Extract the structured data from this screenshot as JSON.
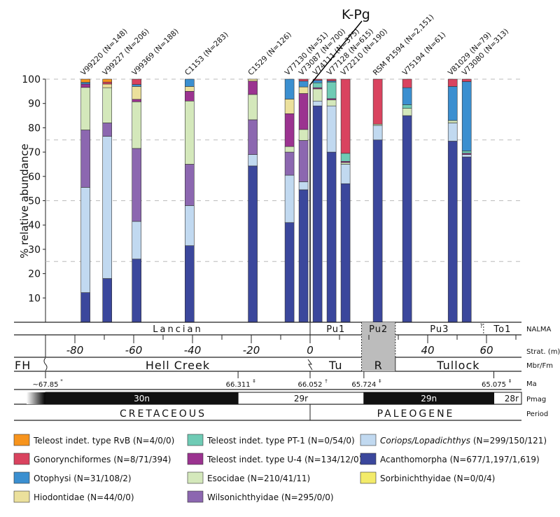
{
  "chart_data": {
    "type": "bar",
    "stacked": true,
    "ylabel": "% relative abundance",
    "ylim": [
      0,
      100
    ],
    "yticks": [
      10,
      20,
      30,
      40,
      50,
      60,
      70,
      80,
      90,
      100
    ],
    "gridlines": [
      25,
      50,
      75,
      100
    ],
    "grid": "dashed horizontal",
    "annotation": "K-Pg",
    "categories_order_bottom_to_top": [
      "Acanthomorpha",
      "Coriops/Lopadichthys",
      "Wilsonichthyidae",
      "Esocidae",
      "Teleost indet. type U-4",
      "Hiodontidae",
      "Sorbinichthyidae",
      "Teleost indet. type PT-1",
      "Otophysi",
      "Gonorynchiformes",
      "Teleost indet. type RvB"
    ],
    "series_colors": {
      "Teleost indet. type RvB": "#f7941d",
      "Gonorynchiformes": "#d9435f",
      "Otophysi": "#3b8fd0",
      "Hiodontidae": "#ebe09c",
      "Teleost indet. type PT-1": "#6fcbb5",
      "Teleost indet. type U-4": "#9b3390",
      "Esocidae": "#d4e8bb",
      "Wilsonichthyidae": "#8c67b0",
      "Coriops/Lopadichthys": "#c1d9f0",
      "Acanthomorpha": "#3b479c",
      "Sorbinichthyidae": "#f3eb6a"
    },
    "bars": [
      {
        "label": "V99220 (N=148)",
        "strat_m": -76.4,
        "values": {
          "Acanthomorpha": 12.2,
          "Coriops/Lopadichthys": 43.3,
          "Wilsonichthyidae": 23.6,
          "Esocidae": 17.5,
          "Teleost indet. type U-4": 1.4,
          "Otophysi": 0.7,
          "Teleost indet. type RvB": 1.3
        }
      },
      {
        "label": "V99227 (N=206)",
        "strat_m": -69,
        "values": {
          "Acanthomorpha": 18,
          "Coriops/Lopadichthys": 58.5,
          "Wilsonichthyidae": 5.5,
          "Esocidae": 14.5,
          "Hiodontidae": 1.5,
          "Gonorynchiformes": 0.8,
          "Teleost indet. type RvB": 1.2
        }
      },
      {
        "label": "V99369 (N=188)",
        "strat_m": -59,
        "values": {
          "Acanthomorpha": 26,
          "Coriops/Lopadichthys": 15.5,
          "Wilsonichthyidae": 30,
          "Esocidae": 19.2,
          "Teleost indet. type U-4": 1,
          "Hiodontidae": 5.3,
          "Otophysi": 0.8,
          "Gonorynchiformes": 2.2
        }
      },
      {
        "label": "C1153 (N=283)",
        "strat_m": -41,
        "values": {
          "Acanthomorpha": 31.5,
          "Coriops/Lopadichthys": 16.5,
          "Wilsonichthyidae": 17,
          "Esocidae": 26,
          "Teleost indet. type U-4": 4,
          "Hiodontidae": 2,
          "Otophysi": 3
        }
      },
      {
        "label": "C1529 (N=126)",
        "strat_m": -19.5,
        "values": {
          "Acanthomorpha": 64.3,
          "Coriops/Lopadichthys": 4.7,
          "Wilsonichthyidae": 14.3,
          "Esocidae": 10.4,
          "Teleost indet. type U-4": 5.5,
          "Hiodontidae": 0.8
        }
      },
      {
        "label": "V77130 (N=51)",
        "strat_m": -7,
        "values": {
          "Acanthomorpha": 41,
          "Coriops/Lopadichthys": 19.5,
          "Wilsonichthyidae": 9.5,
          "Esocidae": 2.3,
          "Teleost indet. type U-4": 13.5,
          "Hiodontidae": 6,
          "Otophysi": 8.2
        }
      },
      {
        "label": "V73087 (N=700)",
        "strat_m": -4,
        "values": {
          "Acanthomorpha": 54.5,
          "Coriops/Lopadichthys": 3.3,
          "Wilsonichthyidae": 17,
          "Esocidae": 4.5,
          "Teleost indet. type U-4": 14.8,
          "Hiodontidae": 2.7,
          "Otophysi": 2.4,
          "Gonorynchiformes": 0.8
        }
      },
      {
        "label": "V74111 (N=375)",
        "strat_m": 2,
        "values": {
          "Acanthomorpha": 89,
          "Coriops/Lopadichthys": 2,
          "Esocidae": 5,
          "Teleost indet. type U-4": 0.5,
          "Teleost indet. type PT-1": 2,
          "Otophysi": 1,
          "Gonorynchiformes": 0.5
        }
      },
      {
        "label": "V77128 (N=615)",
        "strat_m": 5.5,
        "values": {
          "Acanthomorpha": 70,
          "Coriops/Lopadichthys": 19,
          "Esocidae": 2.5,
          "Teleost indet. type U-4": 0.5,
          "Teleost indet. type PT-1": 6.8,
          "Otophysi": 0.5,
          "Gonorynchiformes": 0.7
        }
      },
      {
        "label": "V72210 (N=190)",
        "strat_m": 10,
        "values": {
          "Acanthomorpha": 57,
          "Coriops/Lopadichthys": 8,
          "Esocidae": 0.7,
          "Teleost indet. type U-4": 0.5,
          "Teleost indet. type PT-1": 3.3,
          "Gonorynchiformes": 30.5
        }
      },
      {
        "label": "RSM P1594 (N=2,151)",
        "strat_m": 23,
        "muted": true,
        "values": {
          "Acanthomorpha": 75,
          "Coriops/Lopadichthys": 6,
          "Esocidae": 0.5,
          "Gonorynchiformes": 18.5
        }
      },
      {
        "label": "V75194 (N=61)",
        "strat_m": 33,
        "values": {
          "Acanthomorpha": 85,
          "Esocidae": 3,
          "Teleost indet. type PT-1": 1.5,
          "Otophysi": 7,
          "Gonorynchiformes": 3.5
        }
      },
      {
        "label": "V81029 (N=79)",
        "strat_m": 48.5,
        "values": {
          "Acanthomorpha": 74.5,
          "Coriops/Lopadichthys": 7.5,
          "Esocidae": 1,
          "Otophysi": 14,
          "Gonorynchiformes": 3
        }
      },
      {
        "label": "V73080 (N=313)",
        "strat_m": 51.5,
        "values": {
          "Acanthomorpha": 68,
          "Coriops/Lopadichthys": 1,
          "Teleost indet. type U-4": 0.5,
          "Teleost indet. type PT-1": 1,
          "Otophysi": 28.5,
          "Gonorynchiformes": 1
        }
      }
    ],
    "strat_axis": {
      "label": "Strat. (m)",
      "ticks": [
        -80,
        -60,
        -40,
        -20,
        0,
        40,
        60
      ],
      "minor_step": 10
    },
    "nalma": {
      "label": "NALMA",
      "units": [
        {
          "name": "Lancian",
          "from": -90,
          "to": 0
        },
        {
          "name": "Pu1",
          "from": 0,
          "to": 17.5
        },
        {
          "name": "Pu2",
          "from": 17.5,
          "to": 29,
          "shaded": true
        },
        {
          "name": "Pu3",
          "from": 29,
          "to": 59
        },
        {
          "name": "?",
          "from": 59,
          "to": 59
        },
        {
          "name": "To1",
          "from": 59,
          "to": 72
        }
      ]
    },
    "formation": {
      "label": "Mbr/Fm",
      "units": [
        {
          "name": "FH",
          "from": -100,
          "to": -90
        },
        {
          "name": "Hell Creek",
          "from": -90,
          "to": 0
        },
        {
          "name": "Tu",
          "from": 0,
          "to": 17.5
        },
        {
          "name": "R",
          "from": 17.5,
          "to": 29,
          "shaded": true
        },
        {
          "name": "Tullock",
          "from": 29,
          "to": 72
        }
      ]
    },
    "ma": {
      "label": "Ma",
      "ticks": [
        {
          "text": "~67.85",
          "mark": "*",
          "m": -90
        },
        {
          "text": "66.311",
          "mark": "‡",
          "m": -24.5
        },
        {
          "text": "66.052",
          "mark": "†",
          "m": 0
        },
        {
          "text": "65.724",
          "mark": "‡",
          "m": 18.3
        },
        {
          "text": "65.075",
          "mark": "‡",
          "m": 62.5
        }
      ]
    },
    "pmag": {
      "label": "Pmag",
      "units": [
        {
          "name": "30n",
          "from": -90,
          "to": -24.5,
          "normal": true
        },
        {
          "name": "29r",
          "from": -24.5,
          "to": 18.3,
          "normal": false
        },
        {
          "name": "29n",
          "from": 18.3,
          "to": 62.5,
          "normal": true
        },
        {
          "name": "28r",
          "from": 62.5,
          "to": 72,
          "normal": false
        }
      ]
    },
    "period": {
      "label": "Period",
      "units": [
        {
          "name": "CRETACEOUS",
          "from": -100,
          "to": 0
        },
        {
          "name": "PALEOGENE",
          "from": 0,
          "to": 72
        }
      ]
    },
    "legend": {
      "placement": "bottom",
      "entries": [
        {
          "name": "Teleost indet. type RvB",
          "counts": "(N=4/0/0)"
        },
        {
          "name": "Teleost indet. type PT-1",
          "counts": "(N=0/54/0)"
        },
        {
          "name": "Coriops/Lopadichthys",
          "counts": "(N=299/150/121)",
          "italic": true
        },
        {
          "name": "Gonorynchiformes",
          "counts": "(N=8/71/394)"
        },
        {
          "name": "Teleost indet. type U-4",
          "counts": "(N=134/12/0)"
        },
        {
          "name": "Acanthomorpha",
          "counts": "(N=677/1,197/1,619)"
        },
        {
          "name": "Otophysi",
          "counts": "(N=31/108/2)"
        },
        {
          "name": "Esocidae",
          "counts": "(N=210/41/11)"
        },
        {
          "name": "Sorbinichthyidae",
          "counts": "(N=0/0/4)"
        },
        {
          "name": "Hiodontidae",
          "counts": "(N=44/0/0)"
        },
        {
          "name": "Wilsonichthyidae",
          "counts": "(N=295/0/0)"
        }
      ]
    }
  }
}
